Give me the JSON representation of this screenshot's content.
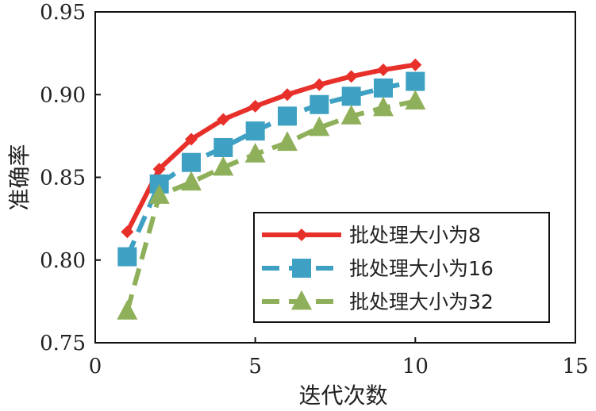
{
  "chart_data": {
    "type": "line",
    "xlabel": "迭代次数",
    "ylabel": "准确率",
    "xlim": [
      0,
      15
    ],
    "ylim": [
      0.75,
      0.95
    ],
    "xticks": [
      "0",
      "5",
      "10",
      "15"
    ],
    "xtick_values": [
      0,
      5,
      10,
      15
    ],
    "yticks": [
      "0.75",
      "0.80",
      "0.85",
      "0.90",
      "0.95"
    ],
    "ytick_values": [
      0.75,
      0.8,
      0.85,
      0.9,
      0.95
    ],
    "grid": false,
    "legend_position": "bottom-right",
    "x": [
      1,
      2,
      3,
      4,
      5,
      6,
      7,
      8,
      9,
      10
    ],
    "series": [
      {
        "name": "批处理大小为8",
        "values": [
          0.817,
          0.855,
          0.873,
          0.885,
          0.893,
          0.9,
          0.906,
          0.911,
          0.915,
          0.918
        ],
        "color": "#e8302b",
        "marker": "diamond",
        "dash": "solid"
      },
      {
        "name": "批处理大小为16",
        "values": [
          0.802,
          0.846,
          0.859,
          0.868,
          0.878,
          0.887,
          0.894,
          0.899,
          0.904,
          0.908
        ],
        "color": "#3ea1c3",
        "marker": "square",
        "dash": "dash"
      },
      {
        "name": "批处理大小为32",
        "values": [
          0.769,
          0.839,
          0.847,
          0.856,
          0.864,
          0.871,
          0.88,
          0.887,
          0.892,
          0.896
        ],
        "color": "#8fb05a",
        "marker": "triangle",
        "dash": "dash"
      }
    ]
  }
}
